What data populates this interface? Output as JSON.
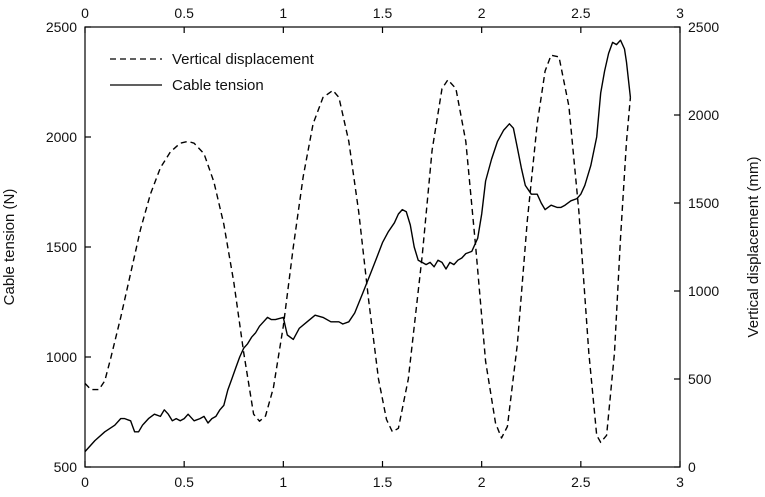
{
  "chart_data": {
    "type": "line",
    "title": "",
    "xlabel": "",
    "xlim": [
      0,
      3
    ],
    "x_ticks": [
      0,
      0.5,
      1,
      1.5,
      2,
      2.5,
      3
    ],
    "x_tick_labels": [
      "0",
      "0.5",
      "1",
      "1.5",
      "2",
      "2.5",
      "3"
    ],
    "left_axis": {
      "label": "Cable tension (N)",
      "ylim": [
        500,
        2500
      ],
      "ticks": [
        500,
        1000,
        1500,
        2000,
        2500
      ],
      "tick_labels": [
        "500",
        "1000",
        "1500",
        "2000",
        "2500"
      ]
    },
    "right_axis": {
      "label": "Vertical displacement (mm)",
      "ylim": [
        0,
        2500
      ],
      "ticks": [
        0,
        500,
        1000,
        1500,
        2000,
        2500
      ],
      "tick_labels": [
        "0",
        "500",
        "1000",
        "1500",
        "2000",
        "2500"
      ]
    },
    "grid": false,
    "legend_position": "top-left",
    "series": [
      {
        "name": "Vertical displacement",
        "axis": "right",
        "style": "dashed",
        "color": "#000000",
        "x": [
          0,
          0.03,
          0.07,
          0.1,
          0.13,
          0.18,
          0.23,
          0.28,
          0.33,
          0.38,
          0.43,
          0.48,
          0.52,
          0.55,
          0.6,
          0.65,
          0.7,
          0.75,
          0.8,
          0.85,
          0.88,
          0.91,
          0.95,
          1.0,
          1.05,
          1.1,
          1.15,
          1.2,
          1.25,
          1.28,
          1.33,
          1.38,
          1.43,
          1.48,
          1.52,
          1.55,
          1.58,
          1.63,
          1.7,
          1.75,
          1.8,
          1.83,
          1.87,
          1.92,
          1.97,
          2.02,
          2.07,
          2.1,
          2.13,
          2.18,
          2.23,
          2.28,
          2.32,
          2.35,
          2.39,
          2.44,
          2.49,
          2.54,
          2.58,
          2.6,
          2.63,
          2.67,
          2.7,
          2.73,
          2.75
        ],
        "y": [
          475,
          440,
          440,
          490,
          620,
          850,
          1100,
          1350,
          1550,
          1700,
          1790,
          1840,
          1850,
          1840,
          1780,
          1620,
          1380,
          1050,
          650,
          300,
          260,
          290,
          450,
          800,
          1250,
          1650,
          1950,
          2100,
          2140,
          2100,
          1850,
          1450,
          950,
          500,
          270,
          200,
          220,
          500,
          1200,
          1800,
          2150,
          2200,
          2150,
          1850,
          1250,
          600,
          250,
          165,
          230,
          700,
          1400,
          1950,
          2250,
          2340,
          2330,
          2050,
          1450,
          650,
          180,
          140,
          180,
          650,
          1300,
          1850,
          2100
        ]
      },
      {
        "name": "Cable tension",
        "axis": "left",
        "style": "solid",
        "color": "#000000",
        "x": [
          0,
          0.05,
          0.1,
          0.15,
          0.18,
          0.2,
          0.23,
          0.25,
          0.27,
          0.29,
          0.3,
          0.32,
          0.35,
          0.38,
          0.4,
          0.42,
          0.44,
          0.46,
          0.48,
          0.5,
          0.52,
          0.55,
          0.58,
          0.6,
          0.62,
          0.64,
          0.66,
          0.68,
          0.7,
          0.72,
          0.74,
          0.76,
          0.78,
          0.8,
          0.82,
          0.84,
          0.86,
          0.88,
          0.9,
          0.92,
          0.94,
          0.96,
          1.0,
          1.02,
          1.05,
          1.08,
          1.12,
          1.16,
          1.2,
          1.24,
          1.28,
          1.3,
          1.33,
          1.36,
          1.4,
          1.44,
          1.47,
          1.5,
          1.53,
          1.56,
          1.58,
          1.6,
          1.62,
          1.64,
          1.66,
          1.68,
          1.7,
          1.72,
          1.74,
          1.76,
          1.78,
          1.8,
          1.82,
          1.84,
          1.86,
          1.88,
          1.9,
          1.92,
          1.95,
          1.98,
          2.0,
          2.02,
          2.05,
          2.08,
          2.11,
          2.14,
          2.16,
          2.18,
          2.2,
          2.22,
          2.25,
          2.28,
          2.3,
          2.32,
          2.35,
          2.38,
          2.4,
          2.42,
          2.45,
          2.48,
          2.5,
          2.52,
          2.55,
          2.58,
          2.6,
          2.62,
          2.64,
          2.66,
          2.68,
          2.7,
          2.72,
          2.73,
          2.75
        ],
        "y": [
          570,
          620,
          660,
          690,
          720,
          720,
          710,
          660,
          660,
          690,
          700,
          720,
          740,
          730,
          760,
          740,
          710,
          720,
          710,
          720,
          740,
          710,
          720,
          730,
          700,
          720,
          730,
          760,
          780,
          850,
          900,
          950,
          1000,
          1040,
          1060,
          1090,
          1110,
          1140,
          1160,
          1180,
          1170,
          1170,
          1180,
          1100,
          1080,
          1130,
          1160,
          1190,
          1180,
          1160,
          1160,
          1150,
          1160,
          1200,
          1290,
          1380,
          1450,
          1520,
          1570,
          1610,
          1650,
          1670,
          1660,
          1600,
          1500,
          1440,
          1430,
          1420,
          1430,
          1410,
          1440,
          1430,
          1400,
          1430,
          1420,
          1440,
          1450,
          1470,
          1480,
          1540,
          1650,
          1800,
          1900,
          1980,
          2030,
          2060,
          2040,
          1950,
          1860,
          1780,
          1740,
          1740,
          1700,
          1670,
          1690,
          1680,
          1680,
          1690,
          1710,
          1720,
          1740,
          1780,
          1870,
          2000,
          2200,
          2300,
          2380,
          2430,
          2420,
          2440,
          2400,
          2340,
          2180
        ]
      }
    ]
  }
}
